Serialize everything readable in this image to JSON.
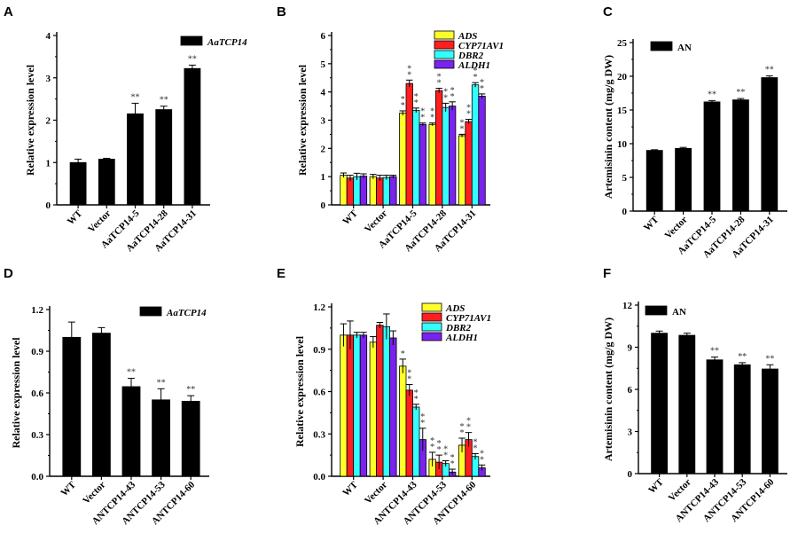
{
  "chart_data": [
    {
      "panel": "A",
      "type": "bar",
      "ylabel": "Relative expression level",
      "ylim": [
        0,
        4
      ],
      "yticks": [
        "0",
        "1",
        "2",
        "3",
        "4"
      ],
      "categories": [
        "WT",
        "Vector",
        "AaTCP14-5",
        "AaTCP14-28",
        "AaTCP14-31"
      ],
      "legend_position": "top-right",
      "series": [
        {
          "name": "AaTCP14",
          "italic": true,
          "color": "#000000",
          "values": [
            1.0,
            1.08,
            2.15,
            2.25,
            3.22
          ],
          "errors": [
            0.08,
            0.02,
            0.25,
            0.08,
            0.08
          ],
          "sig": [
            "",
            "",
            "**",
            "**",
            "**"
          ]
        }
      ]
    },
    {
      "panel": "B",
      "type": "bar",
      "ylabel": "Relative expression level",
      "ylim": [
        0,
        6
      ],
      "yticks": [
        "0",
        "1",
        "2",
        "3",
        "4",
        "5",
        "6"
      ],
      "categories": [
        "WT",
        "Vector",
        "AaTCP14-5",
        "AaTCP14-28",
        "AaTCP14-31"
      ],
      "legend_position": "top-right",
      "series": [
        {
          "name": "ADS",
          "italic": true,
          "color": "#ffff2a",
          "values": [
            1.05,
            1.0,
            3.25,
            2.85,
            2.45
          ],
          "errors": [
            0.08,
            0.08,
            0.08,
            0.05,
            0.05
          ],
          "sig": [
            "",
            "",
            "**",
            "**",
            "**"
          ]
        },
        {
          "name": "CYP71AV1",
          "italic": true,
          "color": "#ff1f1f",
          "values": [
            0.95,
            0.95,
            4.3,
            4.05,
            2.95
          ],
          "errors": [
            0.1,
            0.1,
            0.12,
            0.08,
            0.08
          ],
          "sig": [
            "",
            "",
            "**",
            "**",
            "**"
          ]
        },
        {
          "name": "DBR2",
          "italic": true,
          "color": "#33ffff",
          "values": [
            1.0,
            0.97,
            3.35,
            3.45,
            4.25
          ],
          "errors": [
            0.12,
            0.08,
            0.08,
            0.15,
            0.08
          ],
          "sig": [
            "",
            "",
            "**",
            "**",
            "**"
          ]
        },
        {
          "name": "ALDH1",
          "italic": true,
          "color": "#7a22ee",
          "values": [
            1.02,
            1.0,
            2.85,
            3.5,
            3.85
          ],
          "errors": [
            0.08,
            0.05,
            0.05,
            0.15,
            0.08
          ],
          "sig": [
            "",
            "",
            "**",
            "**",
            "**"
          ]
        }
      ]
    },
    {
      "panel": "C",
      "type": "bar",
      "ylabel": "Artemisinin content (mg/g DW)",
      "ylim": [
        0,
        25
      ],
      "yticks": [
        "0",
        "5",
        "10",
        "15",
        "20",
        "25"
      ],
      "categories": [
        "WT",
        "Vector",
        "AaTCP14-5",
        "AaTCP14-28",
        "AaTCP14-31"
      ],
      "legend_position": "top-left",
      "series": [
        {
          "name": "AN",
          "italic": false,
          "color": "#000000",
          "values": [
            9.0,
            9.3,
            16.2,
            16.5,
            19.8
          ],
          "errors": [
            0.1,
            0.15,
            0.2,
            0.2,
            0.25
          ],
          "sig": [
            "",
            "",
            "**",
            "**",
            "**"
          ]
        }
      ]
    },
    {
      "panel": "D",
      "type": "bar",
      "ylabel": "Relative expression level",
      "ylim": [
        0,
        1.2
      ],
      "yticks": [
        "0.0",
        "0.3",
        "0.6",
        "0.9",
        "1.2"
      ],
      "categories": [
        "WT",
        "Vector",
        "ANTCP14-43",
        "ANTCP14-53",
        "ANTCP14-60"
      ],
      "legend_position": "top-right",
      "series": [
        {
          "name": "AaTCP14",
          "italic": true,
          "color": "#000000",
          "values": [
            1.0,
            1.03,
            0.645,
            0.55,
            0.54
          ],
          "errors": [
            0.11,
            0.04,
            0.06,
            0.08,
            0.04
          ],
          "sig": [
            "",
            "",
            "**",
            "**",
            "**"
          ]
        }
      ]
    },
    {
      "panel": "E",
      "type": "bar",
      "ylabel": "Relative expression level",
      "ylim": [
        0,
        1.2
      ],
      "yticks": [
        "0.0",
        "0.3",
        "0.6",
        "0.9",
        "1.2"
      ],
      "categories": [
        "WT",
        "Vector",
        "ANTCP14-43",
        "ANTCP14-53",
        "ANTCP14-60"
      ],
      "legend_position": "top-right",
      "series": [
        {
          "name": "ADS",
          "italic": true,
          "color": "#ffff2a",
          "values": [
            1.0,
            0.95,
            0.78,
            0.12,
            0.22
          ],
          "errors": [
            0.08,
            0.04,
            0.05,
            0.05,
            0.05
          ],
          "sig": [
            "",
            "",
            "*",
            "**",
            "**"
          ]
        },
        {
          "name": "CYP71AV1",
          "italic": true,
          "color": "#ff1f1f",
          "values": [
            1.0,
            1.07,
            0.61,
            0.1,
            0.26
          ],
          "errors": [
            0.1,
            0.02,
            0.04,
            0.05,
            0.05
          ],
          "sig": [
            "",
            "",
            "**",
            "**",
            "**"
          ]
        },
        {
          "name": "DBR2",
          "italic": true,
          "color": "#33ffff",
          "values": [
            1.0,
            1.06,
            0.49,
            0.09,
            0.14
          ],
          "errors": [
            0.02,
            0.09,
            0.02,
            0.02,
            0.02
          ],
          "sig": [
            "",
            "",
            "**",
            "**",
            "**"
          ]
        },
        {
          "name": "ALDH1",
          "italic": true,
          "color": "#7a22ee",
          "values": [
            1.0,
            0.98,
            0.26,
            0.03,
            0.06
          ],
          "errors": [
            0.02,
            0.05,
            0.08,
            0.02,
            0.02
          ],
          "sig": [
            "",
            "",
            "**",
            "**",
            "**"
          ]
        }
      ]
    },
    {
      "panel": "F",
      "type": "bar",
      "ylabel": "Artemisinin content (mg/g DW)",
      "ylim": [
        0,
        12
      ],
      "yticks": [
        "0",
        "3",
        "6",
        "9",
        "12"
      ],
      "categories": [
        "WT",
        "Vector",
        "ANTCP14-43",
        "ANTCP14-53",
        "ANTCP14-60"
      ],
      "legend_position": "top-left",
      "series": [
        {
          "name": "AN",
          "italic": false,
          "color": "#000000",
          "values": [
            10.0,
            9.85,
            8.1,
            7.75,
            7.45
          ],
          "errors": [
            0.15,
            0.15,
            0.2,
            0.15,
            0.3
          ],
          "sig": [
            "",
            "",
            "**",
            "**",
            "**"
          ]
        }
      ]
    }
  ]
}
